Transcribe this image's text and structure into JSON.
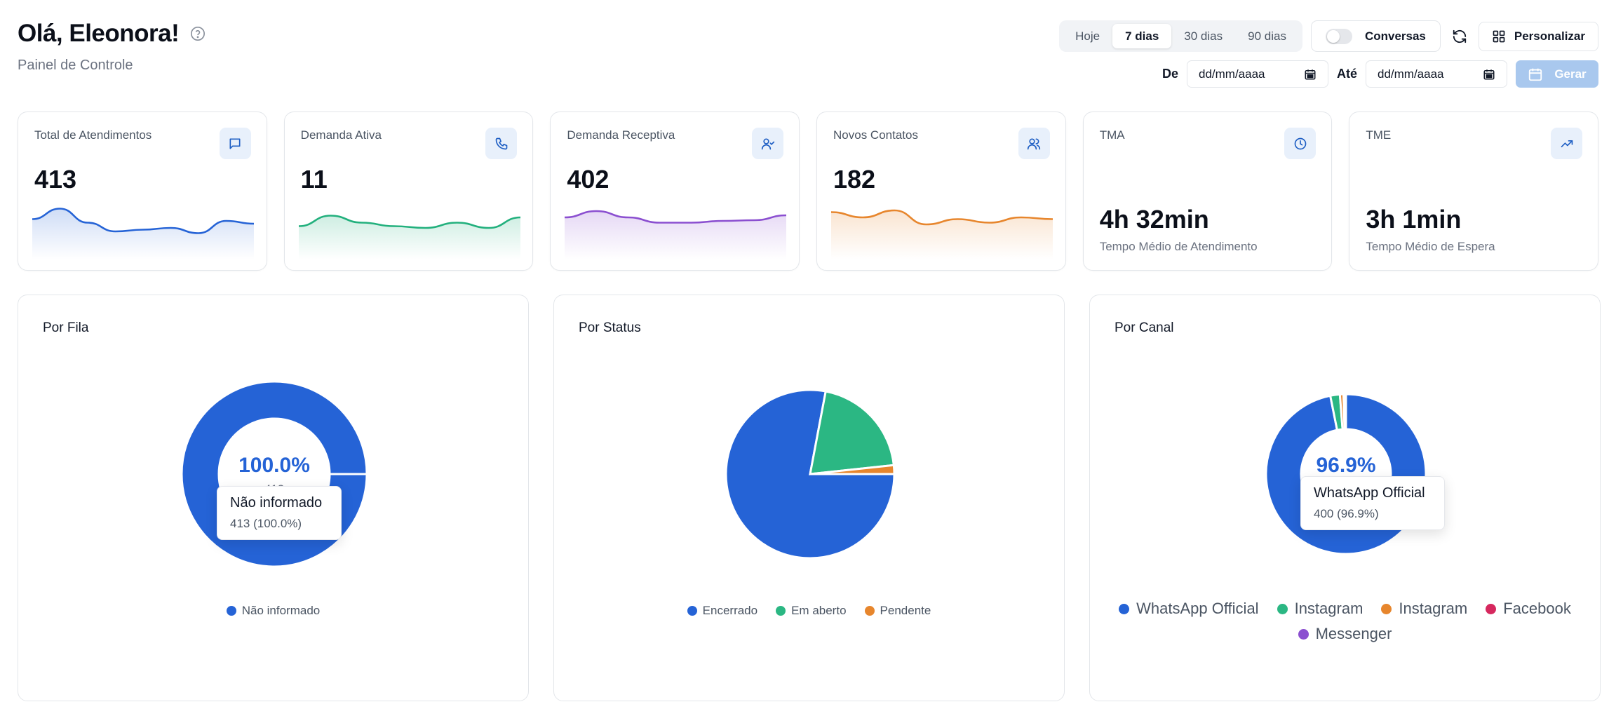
{
  "header": {
    "title": "Olá, Eleonora!",
    "subtitle": "Painel de Controle"
  },
  "controls": {
    "ranges": [
      "Hoje",
      "7 dias",
      "30 dias",
      "90 dias"
    ],
    "active_range": "7 dias",
    "toggle_label": "Conversas",
    "personalize_label": "Personalizar",
    "from_label": "De",
    "to_label": "Até",
    "date_placeholder": "dd/mm/aaaa",
    "generate_label": "Gerar"
  },
  "kpis": [
    {
      "label": "Total de Atendimentos",
      "value": "413",
      "icon": "message-icon",
      "color": "#2563d6",
      "trend": [
        0.55,
        0.85,
        0.45,
        0.2,
        0.25,
        0.3,
        0.15,
        0.5,
        0.42
      ]
    },
    {
      "label": "Demanda Ativa",
      "value": "11",
      "icon": "phone-icon",
      "color": "#22b07d",
      "trend": [
        0.35,
        0.65,
        0.45,
        0.35,
        0.3,
        0.45,
        0.3,
        0.6
      ]
    },
    {
      "label": "Demanda Receptiva",
      "value": "402",
      "icon": "user-check-icon",
      "color": "#8b4fd0",
      "trend": [
        0.6,
        0.78,
        0.6,
        0.45,
        0.45,
        0.5,
        0.52,
        0.66
      ]
    },
    {
      "label": "Novos Contatos",
      "value": "182",
      "icon": "users-icon",
      "color": "#e7862d",
      "trend": [
        0.75,
        0.6,
        0.8,
        0.4,
        0.55,
        0.45,
        0.6,
        0.55
      ]
    },
    {
      "label": "TMA",
      "value": "4h 32min",
      "sub": "Tempo Médio de Atendimento",
      "icon": "clock-icon"
    },
    {
      "label": "TME",
      "value": "3h 1min",
      "sub": "Tempo Médio de Espera",
      "icon": "trending-up-icon"
    }
  ],
  "panels": {
    "fila": {
      "title": "Por Fila",
      "center_percent": "100.0%",
      "center_count": "413",
      "tooltip_title": "Não informado",
      "tooltip_value": "413 (100.0%)",
      "legend": [
        {
          "label": "Não informado",
          "color": "#2563d6"
        }
      ]
    },
    "status": {
      "title": "Por Status",
      "legend": [
        {
          "label": "Encerrado",
          "color": "#2563d6"
        },
        {
          "label": "Em aberto",
          "color": "#2bb783"
        },
        {
          "label": "Pendente",
          "color": "#e7862d"
        }
      ]
    },
    "canal": {
      "title": "Por Canal",
      "center_percent": "96.9%",
      "tooltip_title": "WhatsApp Official",
      "tooltip_value": "400 (96.9%)",
      "legend": [
        {
          "label": "WhatsApp Official",
          "color": "#2563d6"
        },
        {
          "label": "Instagram",
          "color": "#2bb783"
        },
        {
          "label": "Instagram",
          "color": "#e7862d"
        },
        {
          "label": "Facebook",
          "color": "#d6285e"
        },
        {
          "label": "Messenger",
          "color": "#8b4fd0"
        }
      ]
    }
  },
  "chart_data": [
    {
      "type": "pie",
      "title": "Por Fila",
      "labels": [
        "Não informado"
      ],
      "values": [
        413
      ],
      "colors": [
        "#2563d6"
      ]
    },
    {
      "type": "pie",
      "title": "Por Status",
      "labels": [
        "Encerrado",
        "Em aberto",
        "Pendente"
      ],
      "values": [
        322,
        84,
        7
      ],
      "colors": [
        "#2563d6",
        "#2bb783",
        "#e7862d"
      ]
    },
    {
      "type": "pie",
      "title": "Por Canal",
      "labels": [
        "WhatsApp Official",
        "Instagram",
        "Instagram",
        "Facebook",
        "Messenger"
      ],
      "values": [
        400,
        8,
        3,
        1,
        1
      ],
      "colors": [
        "#2563d6",
        "#2bb783",
        "#e7862d",
        "#d6285e",
        "#8b4fd0"
      ]
    }
  ]
}
